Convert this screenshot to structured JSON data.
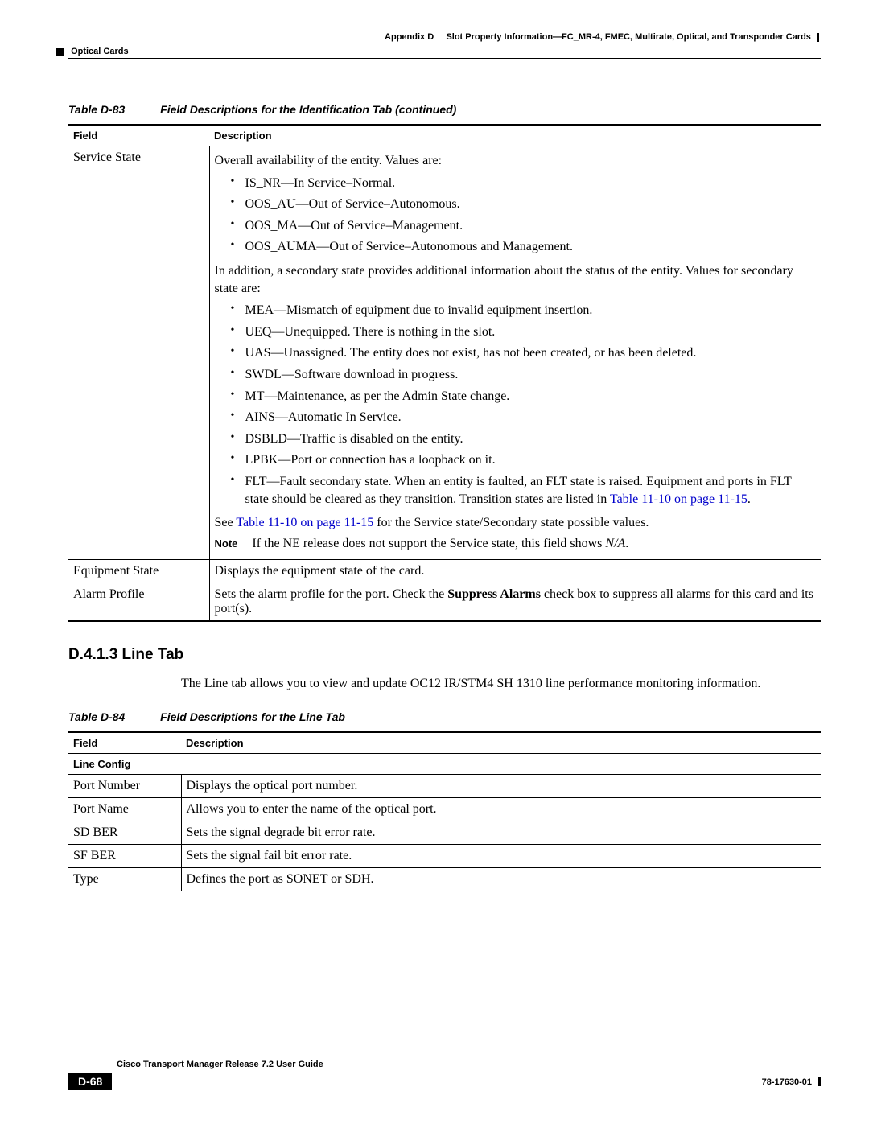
{
  "header": {
    "appendix": "Appendix D",
    "chapter_title": "Slot Property Information—FC_MR-4, FMEC, Multirate, Optical, and Transponder Cards",
    "section": "Optical Cards"
  },
  "table83": {
    "caption_num": "Table D-83",
    "caption_text": "Field Descriptions for the Identification Tab (continued)",
    "col_field": "Field",
    "col_desc": "Description",
    "row1_field": "Service State",
    "row1_intro": "Overall availability of the entity. Values are:",
    "row1_list1": [
      "IS_NR—In Service–Normal.",
      "OOS_AU—Out of Service–Autonomous.",
      "OOS_MA—Out of Service–Management.",
      "OOS_AUMA—Out of Service–Autonomous and Management."
    ],
    "row1_mid": "In addition, a secondary state provides additional information about the status of the entity. Values for secondary state are:",
    "row1_list2": [
      "MEA—Mismatch of equipment due to invalid equipment insertion.",
      "UEQ—Unequipped. There is nothing in the slot.",
      "UAS—Unassigned. The entity does not exist, has not been created, or has been deleted.",
      "SWDL—Software download in progress.",
      "MT—Maintenance, as per the Admin State change.",
      "AINS—Automatic In Service.",
      "DSBLD—Traffic is disabled on the entity.",
      "LPBK—Port or connection has a loopback on it."
    ],
    "row1_flt_pre": "FLT—Fault secondary state. When an entity is faulted, an FLT state is raised. Equipment and ports in FLT state should be cleared as they transition. Transition states are listed in ",
    "row1_flt_link": "Table 11-10 on page 11-15",
    "row1_flt_post": ".",
    "row1_see_pre": "See ",
    "row1_see_link": "Table 11-10 on page 11-15",
    "row1_see_post": " for the Service state/Secondary state possible values.",
    "row1_note_label": "Note",
    "row1_note_pre": "If the NE release does not support the Service state, this field shows ",
    "row1_note_na": "N/A",
    "row1_note_post": ".",
    "row2_field": "Equipment State",
    "row2_desc": "Displays the equipment state of the card.",
    "row3_field": "Alarm Profile",
    "row3_desc_pre": "Sets the alarm profile for the port. Check the ",
    "row3_desc_bold": "Suppress Alarms",
    "row3_desc_post": " check box to suppress all alarms for this card and its port(s)."
  },
  "section": {
    "heading": "D.4.1.3  Line Tab",
    "intro": "The Line tab allows you to view and update OC12 IR/STM4 SH 1310 line performance monitoring information."
  },
  "table84": {
    "caption_num": "Table D-84",
    "caption_text": "Field Descriptions for the Line Tab",
    "col_field": "Field",
    "col_desc": "Description",
    "subheader": "Line Config",
    "rows": [
      {
        "f": "Port Number",
        "d": "Displays the optical port number."
      },
      {
        "f": "Port Name",
        "d": "Allows you to enter the name of the optical port."
      },
      {
        "f": "SD BER",
        "d": "Sets the signal degrade bit error rate."
      },
      {
        "f": "SF BER",
        "d": "Sets the signal fail bit error rate."
      },
      {
        "f": "Type",
        "d": "Defines the port as SONET or SDH."
      }
    ]
  },
  "footer": {
    "guide": "Cisco Transport Manager Release 7.2 User Guide",
    "page": "D-68",
    "docnum": "78-17630-01"
  }
}
